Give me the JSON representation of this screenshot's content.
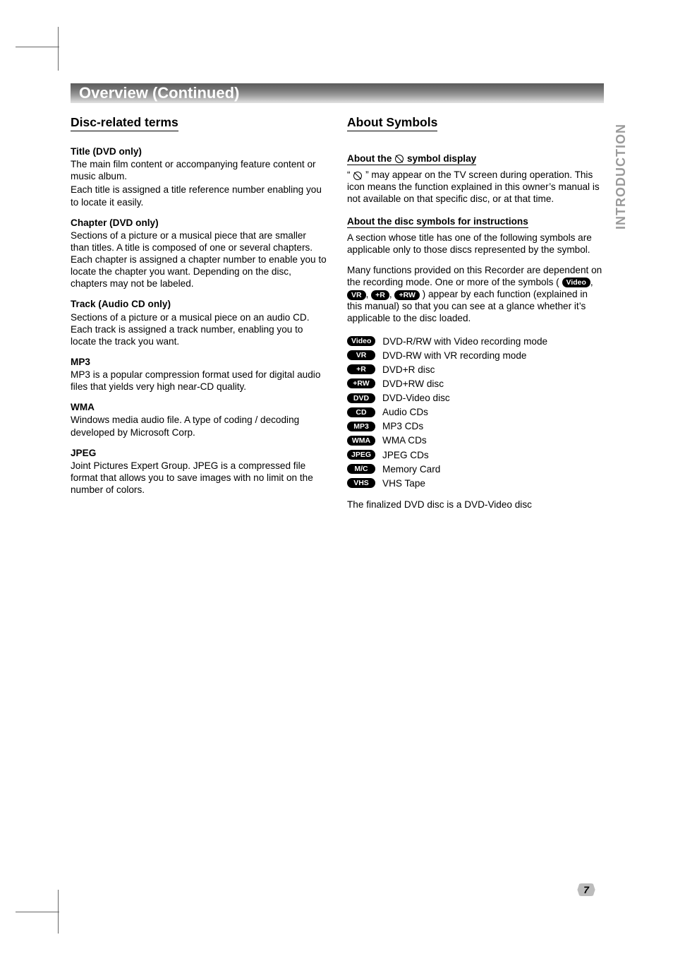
{
  "page": {
    "banner": "Overview (Continued)",
    "side_tab": "INTRODUCTION",
    "page_number": "7",
    "final_note": "The finalized DVD disc is a DVD-Video disc"
  },
  "left": {
    "heading": "Disc-related terms",
    "title": {
      "h": "Title (DVD only)",
      "p1": "The main film content or accompanying feature content or music album.",
      "p2": "Each title is assigned a title reference number enabling you to locate it easily."
    },
    "chapter": {
      "h": "Chapter (DVD only)",
      "p": "Sections of a picture or a musical piece that are smaller than titles. A title is composed of one or several chapters. Each chapter is assigned a chapter number to enable you to locate the chapter you want. Depending on the disc, chapters may not be labeled."
    },
    "track": {
      "h": "Track (Audio CD only)",
      "p": "Sections of a picture or a musical piece on an audio CD. Each track is assigned a track number, enabling you to locate the track you want."
    },
    "mp3": {
      "h": "MP3",
      "p": "MP3 is a popular compression format used for digital audio files that yields very high near-CD quality."
    },
    "wma": {
      "h": "WMA",
      "p": "Windows media audio file. A type of coding / decoding developed by Microsoft Corp."
    },
    "jpeg": {
      "h": "JPEG",
      "p": "Joint Pictures Expert Group. JPEG is a compressed file format that allows you to save images with no limit on the number of colors."
    }
  },
  "right": {
    "heading": "About Symbols",
    "sym_display": {
      "h_pre": "About the ",
      "h_post": " symbol display",
      "p_pre": "“ ",
      "p_post": " ” may appear on the TV screen during operation. This icon means the function explained in this owner’s manual is not available on that specific disc, or at that time."
    },
    "disc_sym": {
      "h": "About the disc symbols for instructions",
      "p1": "A section whose title has one of the following symbols are applicable only to those discs represented by the symbol.",
      "p2_pre": "Many functions provided on this Recorder are dependent on the recording mode. One or more of the symbols ( ",
      "p2_post": " ) appear by each function (explained in this manual) so that you can see at a glance whether it’s applicable to the disc loaded.",
      "inline_pills": [
        "Video",
        "VR",
        "+R",
        "+RW"
      ]
    },
    "legend": [
      {
        "pill": "Video",
        "label": "DVD-R/RW with Video recording mode"
      },
      {
        "pill": "VR",
        "label": "DVD-RW with VR recording mode"
      },
      {
        "pill": "+R",
        "label": "DVD+R disc"
      },
      {
        "pill": "+RW",
        "label": "DVD+RW disc"
      },
      {
        "pill": "DVD",
        "label": "DVD-Video disc"
      },
      {
        "pill": "CD",
        "label": "Audio CDs"
      },
      {
        "pill": "MP3",
        "label": "MP3 CDs"
      },
      {
        "pill": "WMA",
        "label": "WMA CDs"
      },
      {
        "pill": "JPEG",
        "label": "JPEG CDs"
      },
      {
        "pill": "M/C",
        "label": "Memory Card"
      },
      {
        "pill": "VHS",
        "label": "VHS Tape"
      }
    ]
  },
  "style": {
    "banner_text_color": "#ffffff",
    "banner_grad_from": "#5a5a5a",
    "banner_grad_to": "#e2e2e2",
    "body_font_size_pt": 10,
    "heading_font_size_pt": 13,
    "pill_bg": "#000000",
    "pill_fg": "#ffffff",
    "side_tab_color": "#9a9a9a",
    "page_bg": "#ffffff",
    "text_color": "#000000",
    "page_num_bg": "#bcbcbc"
  }
}
